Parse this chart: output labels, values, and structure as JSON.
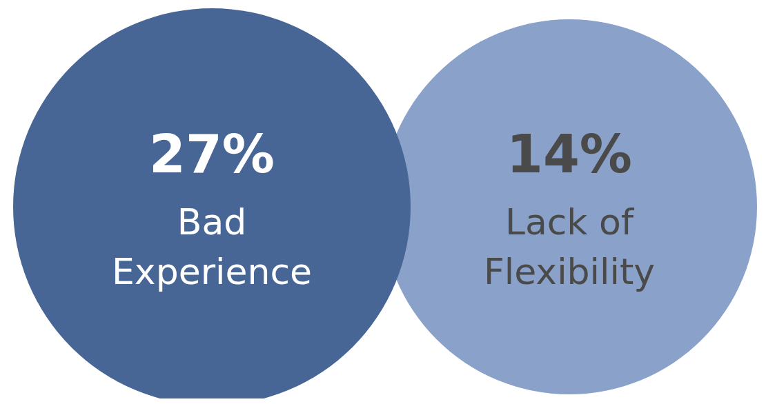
{
  "chart_data": {
    "type": "other",
    "categories": [
      "Bad Experience",
      "Lack of Flexibility"
    ],
    "values": [
      27,
      14
    ],
    "value_labels": [
      "27%",
      "14%"
    ],
    "colors": [
      "#476695",
      "#8aa2c9"
    ]
  }
}
